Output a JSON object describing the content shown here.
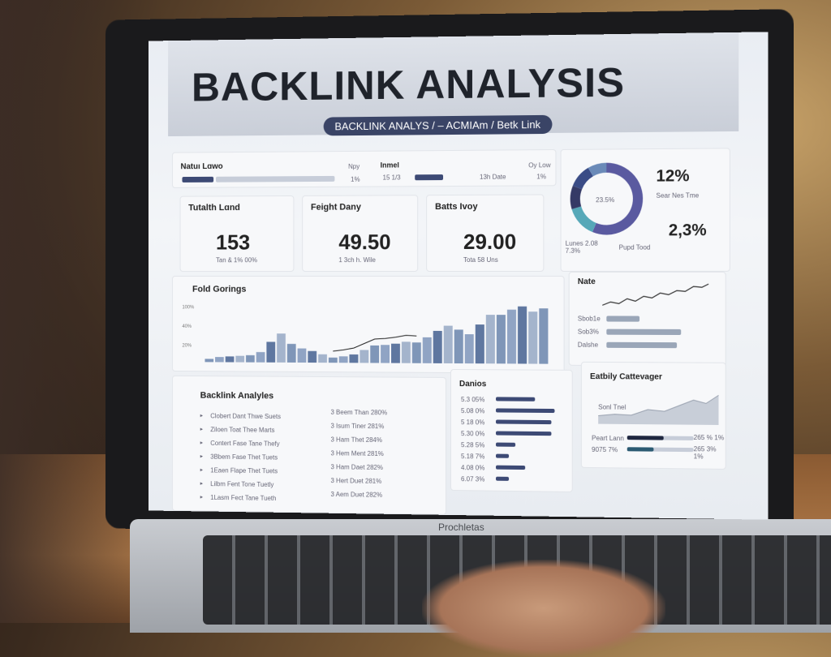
{
  "header": {
    "title": "BACKLINK ANALYSIS",
    "breadcrumb": "BACKLINK ANALYS / – ACMIAm / Betk Link"
  },
  "top_strip": {
    "left_label": "Natuı Lɑwo",
    "left_pct": "1%",
    "left_small": "Npy",
    "mid_label": "Inmel",
    "mid_value": "15 1/3",
    "mid_small": "13h Date",
    "right_small": "Oy Low",
    "right_pct": "1%"
  },
  "kpis": [
    {
      "label": "Tutalth Lɑnd",
      "value": "153",
      "sub": "Tan & 1% 00%"
    },
    {
      "label": "Feight Dany",
      "value": "49.50",
      "sub": "1 3ch h. Wile"
    },
    {
      "label": "Batts Ivoy",
      "value": "29.00",
      "sub": "Tota 58 Uns"
    }
  ],
  "donut": {
    "center": "23.5%",
    "legend_left": "Lunes 2.08 7.3%",
    "legend_right": "Pupd Tood",
    "stat1": "12%",
    "stat1_sub": "Sear Nes Tme",
    "stat2": "2,3%",
    "colors": [
      "#5a5aa0",
      "#56a8b8",
      "#353a66",
      "#3a4c86",
      "#6a8ab8"
    ],
    "values": [
      8,
      2,
      1.5,
      1.5,
      1.2
    ]
  },
  "note": {
    "title": "Nate",
    "rows": [
      "Sbob1e",
      "Sob3%",
      "Dalshe"
    ]
  },
  "chart_data": {
    "type": "bar",
    "title": "Fold Gorings",
    "yticks": [
      "100%",
      "40%",
      "20%"
    ],
    "values": [
      5,
      8,
      9,
      10,
      11,
      16,
      32,
      45,
      29,
      22,
      18,
      13,
      8,
      10,
      13,
      20,
      27,
      28,
      30,
      33,
      32,
      40,
      50,
      58,
      52,
      45,
      60,
      75,
      75,
      83,
      88,
      80,
      85
    ],
    "trend": "line-arrow"
  },
  "analyses": {
    "title": "Backlink Analyles",
    "rows": [
      [
        "Clobert Dant Thwe Suets",
        "3 Beem Than 280%"
      ],
      [
        "Ziloen Toat Thee Marts",
        "3 Isum Tiner 281%"
      ],
      [
        "Contert Fase Tane Thefy",
        "3 Ham Thet 284%"
      ],
      [
        "3Bbem Fase Thet Tuets",
        "3 Hem Ment 281%"
      ],
      [
        "1Eaen Flape Thet Tuets",
        "3 Ham Daet 282%"
      ],
      [
        "Lilbm Fent Tone Tuetly",
        "3 Hert Duet 281%"
      ],
      [
        "1Lasm Fect Tane Tueth",
        "3 Aem Duet 282%"
      ]
    ]
  },
  "domains": {
    "title": "Danios",
    "rows": [
      {
        "label": "5.3 05%",
        "v": 0.6
      },
      {
        "label": "5.08 0%",
        "v": 0.9
      },
      {
        "label": "5 18 0%",
        "v": 0.85
      },
      {
        "label": "5.30 0%",
        "v": 0.85
      },
      {
        "label": "5.28 5%",
        "v": 0.3
      },
      {
        "label": "5.18 7%",
        "v": 0.2
      },
      {
        "label": "4.08 0%",
        "v": 0.45
      },
      {
        "label": "6.07 3%",
        "v": 0.2
      }
    ]
  },
  "category": {
    "title": "Eatbily Cattevager",
    "chart_label": "Sonl Tnel",
    "rows": [
      {
        "label": "Peart Lann",
        "pct": "265 % 1%",
        "v": 0.55
      },
      {
        "label": "9075 7%",
        "pct": "265 3% 1%",
        "v": 0.4
      }
    ]
  },
  "laptop_brand": "Prochletas"
}
